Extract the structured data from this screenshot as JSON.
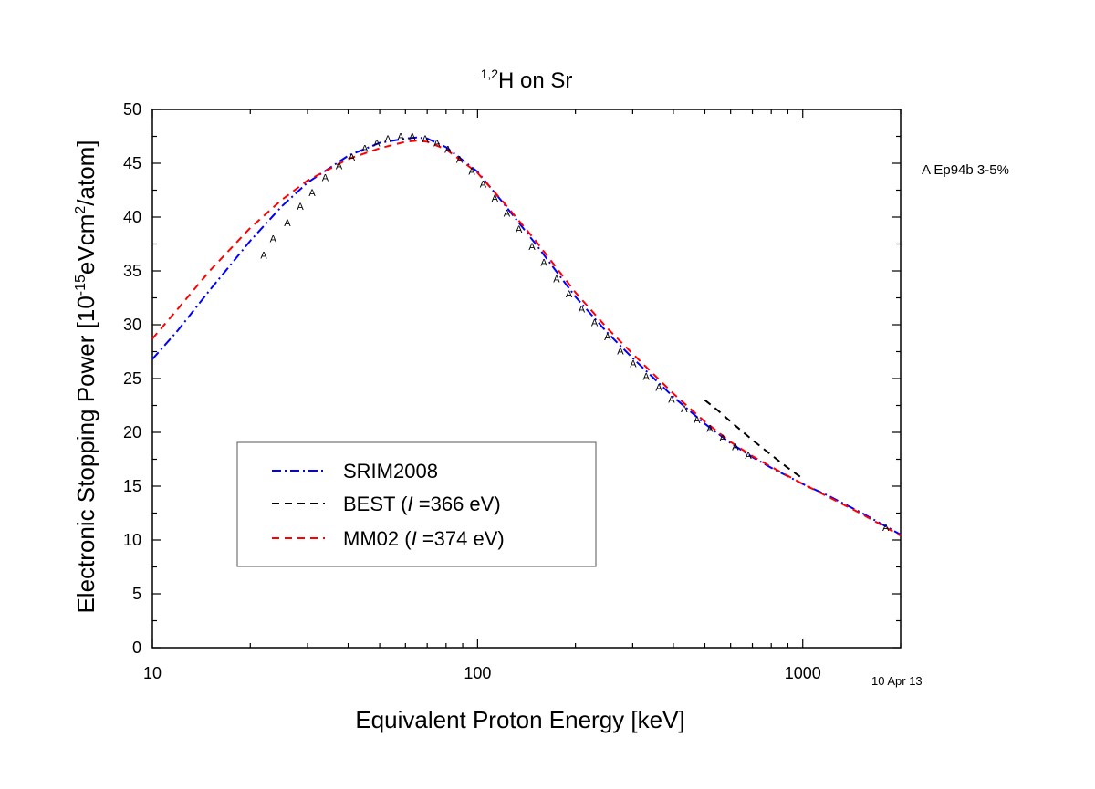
{
  "chart_data": {
    "type": "line",
    "title": {
      "superscript": "1,2",
      "main": "H on Sr"
    },
    "xlabel": "Equivalent Proton Energy [keV]",
    "ylabel": {
      "prefix": "Electronic Stopping Power [10",
      "sup1": "-15",
      "mid": "eVcm",
      "sup2": "2",
      "suffix": "/atom]"
    },
    "x_scale": "log",
    "xlim": [
      10,
      2000
    ],
    "ylim": [
      0,
      50
    ],
    "x_ticks": [
      {
        "value": 10,
        "label": "10"
      },
      {
        "value": 100,
        "label": "100"
      },
      {
        "value": 1000,
        "label": "1000"
      }
    ],
    "y_ticks": [
      {
        "value": 0,
        "label": "0"
      },
      {
        "value": 5,
        "label": "5"
      },
      {
        "value": 10,
        "label": "10"
      },
      {
        "value": 15,
        "label": "15"
      },
      {
        "value": 20,
        "label": "20"
      },
      {
        "value": 25,
        "label": "25"
      },
      {
        "value": 30,
        "label": "30"
      },
      {
        "value": 35,
        "label": "35"
      },
      {
        "value": 40,
        "label": "40"
      },
      {
        "value": 45,
        "label": "45"
      },
      {
        "value": 50,
        "label": "50"
      }
    ],
    "grid": false,
    "legend_position": "bottom-left",
    "series": [
      {
        "name": "SRIM2008",
        "color": "#0000ff",
        "dash": "dash-dot",
        "x": [
          10,
          12,
          15,
          20,
          25,
          30,
          40,
          50,
          60,
          65,
          70,
          80,
          100,
          120,
          150,
          200,
          250,
          300,
          400,
          500,
          600,
          700,
          800,
          1000,
          1200,
          1500,
          2000
        ],
        "y": [
          26.8,
          29.5,
          33.2,
          37.8,
          41.0,
          43.2,
          45.7,
          46.9,
          47.3,
          47.4,
          47.3,
          46.5,
          44.2,
          41.3,
          37.6,
          32.6,
          29.3,
          26.9,
          23.3,
          20.8,
          19.0,
          17.7,
          16.7,
          15.2,
          14.1,
          12.6,
          10.5
        ]
      },
      {
        "name": "BEST",
        "label_parts": [
          "BEST  (",
          "I",
          " =366 eV)"
        ],
        "color": "#000000",
        "dash": "dash",
        "x": [
          500,
          550,
          600,
          700,
          800,
          900,
          1000
        ],
        "y": [
          23.0,
          22.0,
          21.0,
          19.3,
          17.9,
          16.7,
          15.7
        ]
      },
      {
        "name": "MM02",
        "label_parts": [
          "MM02  (",
          "I",
          " =374 eV)"
        ],
        "color": "#ff0000",
        "dash": "dash",
        "x": [
          10,
          12,
          15,
          20,
          25,
          30,
          40,
          50,
          60,
          65,
          70,
          80,
          100,
          120,
          150,
          200,
          250,
          300,
          400,
          500,
          600,
          700,
          800,
          1000,
          1200,
          1500,
          2000
        ],
        "y": [
          28.7,
          31.5,
          35.0,
          39.0,
          41.6,
          43.4,
          45.4,
          46.4,
          47.0,
          47.1,
          47.0,
          46.3,
          44.1,
          41.4,
          37.9,
          33.0,
          29.7,
          27.3,
          23.6,
          21.0,
          19.1,
          17.8,
          16.8,
          15.2,
          14.0,
          12.5,
          10.4
        ]
      }
    ],
    "data_markers": {
      "symbol": "A",
      "source": "A Ep94b  3-5%",
      "points": [
        [
          22,
          36.5
        ],
        [
          23.5,
          38.0
        ],
        [
          26,
          39.5
        ],
        [
          28.5,
          41.0
        ],
        [
          31,
          42.3
        ],
        [
          34,
          43.7
        ],
        [
          37.5,
          44.8
        ],
        [
          41,
          45.6
        ],
        [
          45,
          46.4
        ],
        [
          49,
          46.9
        ],
        [
          53,
          47.3
        ],
        [
          58,
          47.5
        ],
        [
          63,
          47.5
        ],
        [
          69,
          47.3
        ],
        [
          75,
          46.9
        ],
        [
          81,
          46.3
        ],
        [
          88,
          45.4
        ],
        [
          96,
          44.3
        ],
        [
          104,
          43.1
        ],
        [
          113,
          41.8
        ],
        [
          123,
          40.4
        ],
        [
          134,
          38.9
        ],
        [
          147,
          37.3
        ],
        [
          160,
          35.8
        ],
        [
          175,
          34.3
        ],
        [
          191,
          32.9
        ],
        [
          209,
          31.5
        ],
        [
          229,
          30.2
        ],
        [
          251,
          28.9
        ],
        [
          275,
          27.6
        ],
        [
          301,
          26.4
        ],
        [
          330,
          25.2
        ],
        [
          361,
          24.2
        ],
        [
          395,
          23.1
        ],
        [
          432,
          22.2
        ],
        [
          473,
          21.2
        ],
        [
          518,
          20.4
        ],
        [
          567,
          19.5
        ],
        [
          620,
          18.7
        ],
        [
          680,
          17.9
        ],
        [
          1800,
          11.2
        ]
      ]
    },
    "date_note": "10 Apr 13"
  }
}
